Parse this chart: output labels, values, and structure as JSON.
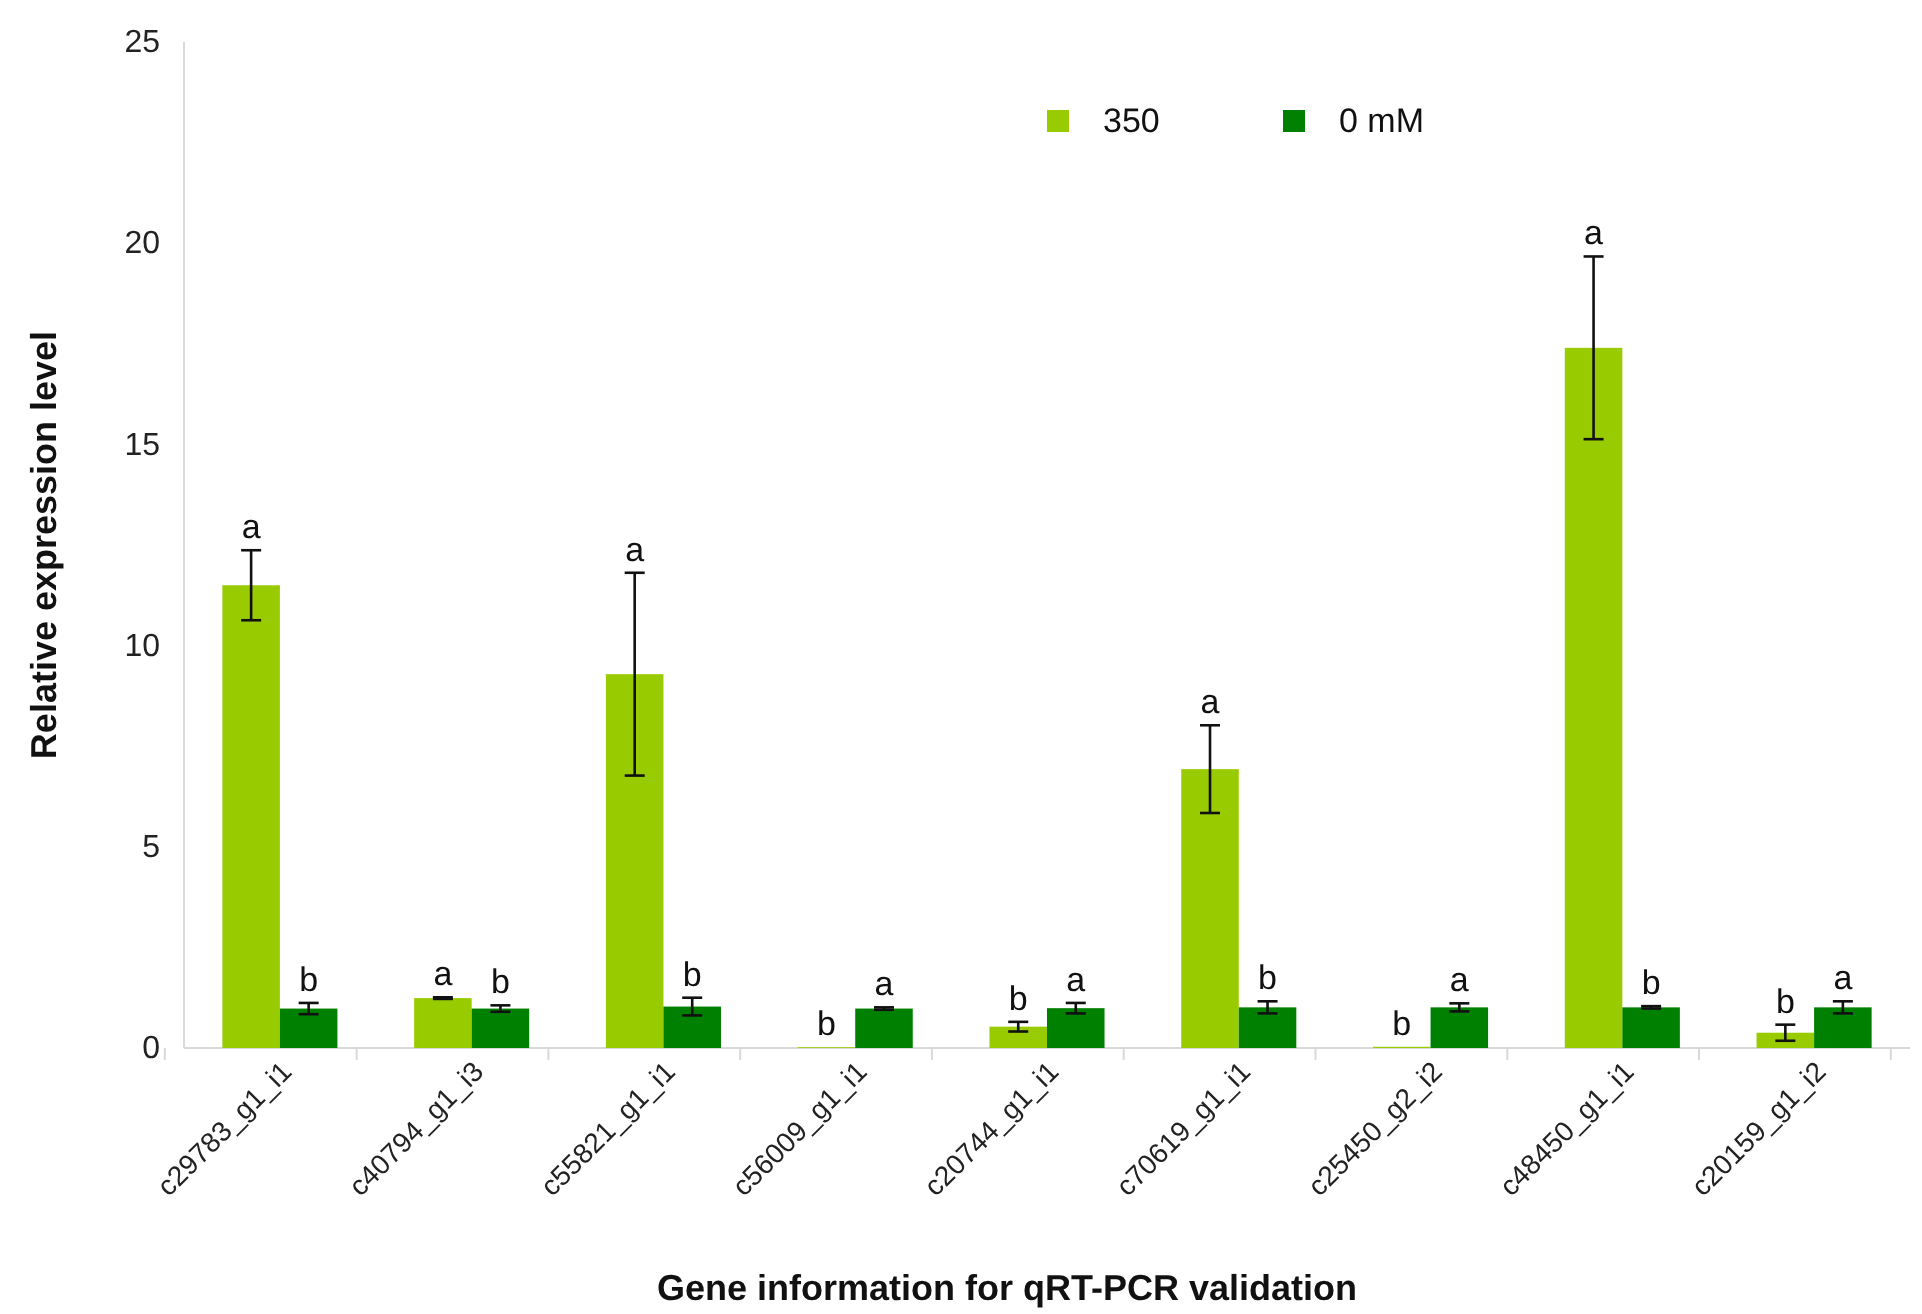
{
  "chart_data": {
    "type": "bar",
    "xlabel": "Gene information for qRT-PCR validation",
    "ylabel": "Relative expression level",
    "categories": [
      "c29783_g1_i1",
      "c40794_g1_i3",
      "c55821_g1_i1",
      "c56009_g1_i1",
      "c20744_g1_i1",
      "c70619_g1_i1",
      "c25450_g2_i2",
      "c48450_g1_i1",
      "c20159_g1_i2"
    ],
    "series": [
      {
        "name": "350",
        "color": "#99cc00",
        "values": [
          11.5,
          1.24,
          9.29,
          0.02,
          0.53,
          6.93,
          0.03,
          17.4,
          0.38
        ],
        "errors": [
          0.87,
          0.02,
          2.52,
          null,
          0.12,
          1.09,
          null,
          2.27,
          0.2
        ]
      },
      {
        "name": "0 mM",
        "color": "#008000",
        "values": [
          0.98,
          0.98,
          1.03,
          0.98,
          0.99,
          1.01,
          1.01,
          1.01,
          1.01
        ],
        "errors": [
          0.14,
          0.08,
          0.22,
          0.03,
          0.13,
          0.15,
          0.1,
          0.03,
          0.15
        ]
      }
    ],
    "ylim": [
      0,
      25
    ],
    "yticks": [
      0,
      5,
      10,
      15,
      20,
      25
    ],
    "grid": false,
    "legend": "top right",
    "annotations": [
      "a",
      "b",
      "a",
      "b",
      "a",
      "b",
      "b",
      "a",
      "b",
      "a",
      "a",
      "b",
      "b",
      "a",
      "a",
      "b",
      "b",
      "a"
    ]
  }
}
